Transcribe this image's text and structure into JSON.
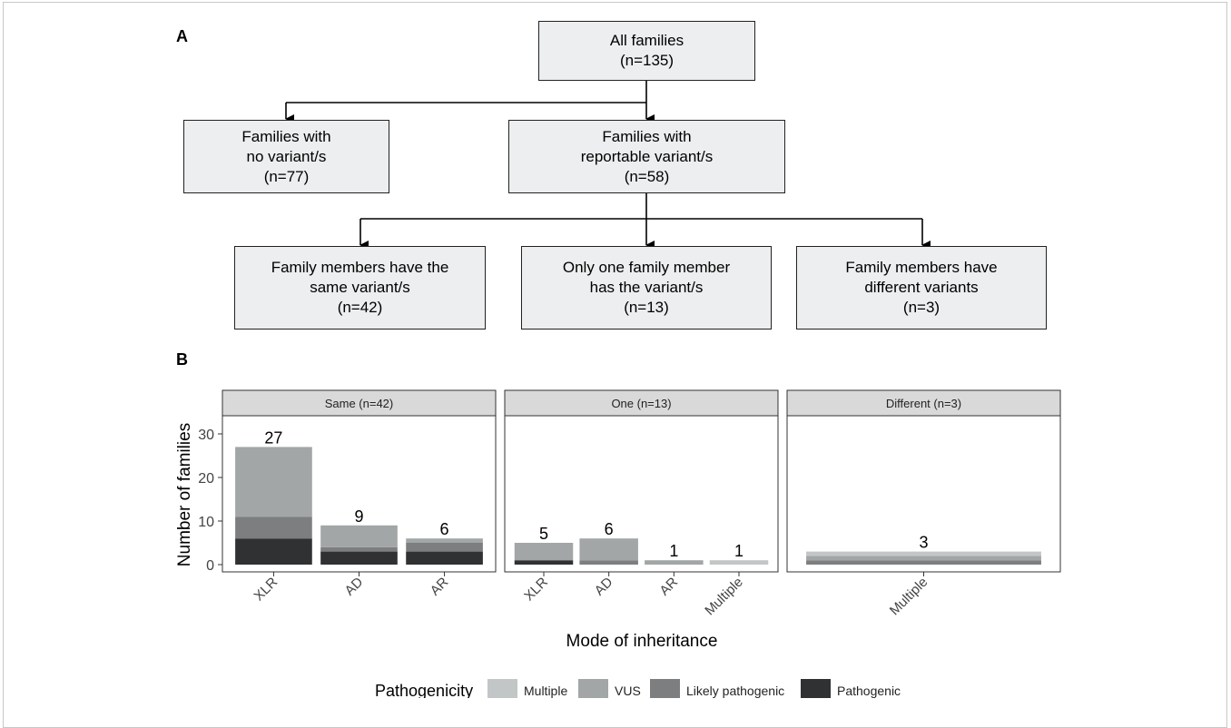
{
  "panel_a": {
    "letter": "A",
    "root": {
      "line1": "All families",
      "line2": "(n=135)"
    },
    "left": {
      "line1": "Families with",
      "line2": "no variant/s",
      "line3": "(n=77)"
    },
    "middle": {
      "line1": "Families with",
      "line2": "reportable variant/s",
      "line3": "(n=58)"
    },
    "child1": {
      "line1": "Family members have the",
      "line2": "same variant/s",
      "line3": "(n=42)"
    },
    "child2": {
      "line1": "Only one family member",
      "line2": "has the variant/s",
      "line3": "(n=13)"
    },
    "child3": {
      "line1": "Family members have",
      "line2": "different variants",
      "line3": "(n=3)"
    }
  },
  "panel_b": {
    "letter": "B"
  },
  "colors": {
    "Multiple": "#c3c6c7",
    "VUS": "#a2a6a6",
    "Likely pathogenic": "#7c7e80",
    "Pathogenic": "#2f3133",
    "strip_bg": "#d9d9d9"
  },
  "chart_data": {
    "type": "bar",
    "stacked": true,
    "ylabel": "Number of families",
    "xlabel": "Mode of inheritance",
    "ylim": [
      0,
      30
    ],
    "yticks": [
      0,
      10,
      20,
      30
    ],
    "grid": false,
    "legend": {
      "title": "Pathogenicity",
      "position": "bottom",
      "entries": [
        "Multiple",
        "VUS",
        "Likely pathogenic",
        "Pathogenic"
      ]
    },
    "facets": [
      {
        "title": "Same (n=42)",
        "categories": [
          "XLR",
          "AD",
          "AR"
        ],
        "totals": [
          27,
          9,
          6
        ],
        "series": [
          {
            "name": "Pathogenic",
            "values": [
              6,
              3,
              3
            ]
          },
          {
            "name": "Likely pathogenic",
            "values": [
              5,
              1,
              2
            ]
          },
          {
            "name": "VUS",
            "values": [
              16,
              5,
              1
            ]
          },
          {
            "name": "Multiple",
            "values": [
              0,
              0,
              0
            ]
          }
        ]
      },
      {
        "title": "One (n=13)",
        "categories": [
          "XLR",
          "AD",
          "AR",
          "Multiple"
        ],
        "totals": [
          5,
          6,
          1,
          1
        ],
        "series": [
          {
            "name": "Pathogenic",
            "values": [
              1,
              0,
              0,
              0
            ]
          },
          {
            "name": "Likely pathogenic",
            "values": [
              0,
              1,
              0,
              0
            ]
          },
          {
            "name": "VUS",
            "values": [
              4,
              5,
              1,
              0
            ]
          },
          {
            "name": "Multiple",
            "values": [
              0,
              0,
              0,
              1
            ]
          }
        ]
      },
      {
        "title": "Different (n=3)",
        "categories": [
          "Multiple"
        ],
        "totals": [
          3
        ],
        "series": [
          {
            "name": "Pathogenic",
            "values": [
              0
            ]
          },
          {
            "name": "Likely pathogenic",
            "values": [
              1
            ]
          },
          {
            "name": "VUS",
            "values": [
              1
            ]
          },
          {
            "name": "Multiple",
            "values": [
              1
            ]
          }
        ]
      }
    ]
  }
}
